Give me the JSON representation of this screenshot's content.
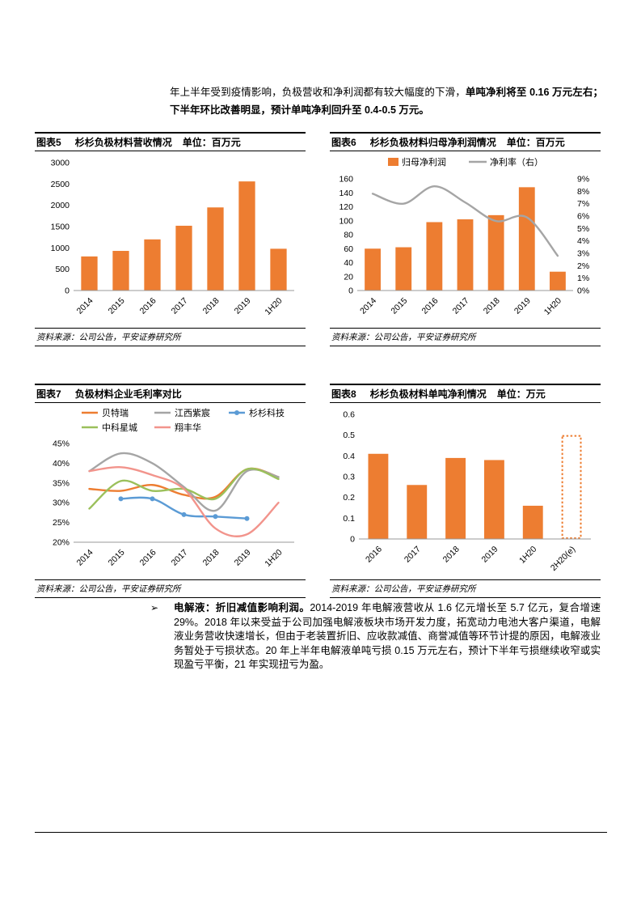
{
  "intro": {
    "regular": "年上半年受到疫情影响，负极营收和净利润都有较大幅度的下滑，",
    "bold": "单吨净利将至 0.16 万元左右；下半年环比改善明显，预计单吨净利回升至 0.4-0.5 万元。"
  },
  "figures": {
    "fig5": {
      "label": "图表5",
      "title": "杉杉负极材料营收情况",
      "unit": "单位：百万元"
    },
    "fig6": {
      "label": "图表6",
      "title": "杉杉负极材料归母净利润情况",
      "unit": "单位：百万元"
    },
    "fig7": {
      "label": "图表7",
      "title": "负极材料企业毛利率对比",
      "unit": ""
    },
    "fig8": {
      "label": "图表8",
      "title": "杉杉负极材料单吨净利情况",
      "unit": "单位：万元"
    }
  },
  "source_note": "资料来源：公司公告，平安证券研究所",
  "bullet": {
    "marker": "➢",
    "lead": "电解液：折旧减值影响利润。",
    "body": "2014-2019 年电解液营收从 1.6 亿元增长至 5.7 亿元，复合增速 29%。2018 年以来受益于公司加强电解液板块市场开发力度，拓宽动力电池大客户渠道，电解液业务营收快速增长，但由于老装置折旧、应收款减值、商誉减值等环节计提的原因，电解液业务暂处于亏损状态。20 年上半年电解液单吨亏损 0.15 万元左右，预计下半年亏损继续收窄或实现盈亏平衡，21 年实现扭亏为盈。"
  },
  "colors": {
    "accent_orange": "#ED7D31",
    "line_gray": "#A5A5A5",
    "line_blue": "#5B9BD5",
    "line_green": "#9BC05B",
    "line_pink": "#F2948C"
  },
  "chart_data": [
    {
      "id": "fig5",
      "type": "bar",
      "title": "杉杉负极材料营收情况",
      "unit": "百万元",
      "categories": [
        "2014",
        "2015",
        "2016",
        "2017",
        "2018",
        "2019",
        "1H20"
      ],
      "values": [
        800,
        930,
        1200,
        1520,
        1950,
        2560,
        980
      ],
      "ylim": [
        0,
        3000
      ],
      "ytick": 500,
      "ytick_format": "int",
      "bar_color": "#ED7D31",
      "grid": false,
      "legend_position": "none"
    },
    {
      "id": "fig6",
      "type": "bar-line",
      "title": "杉杉负极材料归母净利润情况",
      "unit": "百万元",
      "categories": [
        "2014",
        "2015",
        "2016",
        "2017",
        "2018",
        "2019",
        "1H20"
      ],
      "bar_series": {
        "name": "归母净利润",
        "color": "#ED7D31",
        "values": [
          60,
          62,
          98,
          102,
          108,
          148,
          27
        ]
      },
      "line_series": {
        "name": "净利率（右）",
        "color": "#A5A5A5",
        "values": [
          7.8,
          7.0,
          8.4,
          7.1,
          5.6,
          5.9,
          2.8
        ]
      },
      "ylim_left": [
        0,
        160
      ],
      "ytick_left": 20,
      "ytick_left_format": "int",
      "ylim_right": [
        0,
        9
      ],
      "ytick_right": 1,
      "ytick_right_format": "percent",
      "grid": false,
      "legend_position": "top"
    },
    {
      "id": "fig7",
      "type": "line",
      "title": "负极材料企业毛利率对比",
      "categories": [
        "2014",
        "2015",
        "2016",
        "2017",
        "2018",
        "2019",
        "1H20"
      ],
      "series": [
        {
          "name": "贝特瑞",
          "color": "#ED7D31",
          "values": [
            33.5,
            33.0,
            34.5,
            32.0,
            31.5,
            38.5,
            36.5
          ]
        },
        {
          "name": "江西紫宸",
          "color": "#A5A5A5",
          "values": [
            38.0,
            42.5,
            40.0,
            34.0,
            28.0,
            38.0,
            36.5
          ]
        },
        {
          "name": "杉杉科技",
          "color": "#5B9BD5",
          "values": [
            null,
            31.0,
            31.0,
            27.0,
            26.5,
            26.0,
            null
          ],
          "markers": true
        },
        {
          "name": "中科星城",
          "color": "#9BC05B",
          "values": [
            28.5,
            35.5,
            33.0,
            33.5,
            31.0,
            38.5,
            36.0
          ]
        },
        {
          "name": "翔丰华",
          "color": "#F2948C",
          "values": [
            38.0,
            39.0,
            37.0,
            33.5,
            23.5,
            22.0,
            30.0
          ]
        }
      ],
      "ylim": [
        20,
        45
      ],
      "ytick": 5,
      "ytick_format": "percent",
      "grid": false,
      "legend_position": "top"
    },
    {
      "id": "fig8",
      "type": "bar",
      "title": "杉杉负极材料单吨净利情况",
      "unit": "万元",
      "categories": [
        "2016",
        "2017",
        "2018",
        "2019",
        "1H20",
        "2H20(e)"
      ],
      "values": [
        0.41,
        0.26,
        0.39,
        0.38,
        0.16,
        0.5
      ],
      "last_bar_style": "dashed-outline",
      "ylim": [
        0,
        0.6
      ],
      "ytick": 0.1,
      "ytick_format": "dec1",
      "bar_color": "#ED7D31",
      "grid": false,
      "legend_position": "none"
    }
  ]
}
